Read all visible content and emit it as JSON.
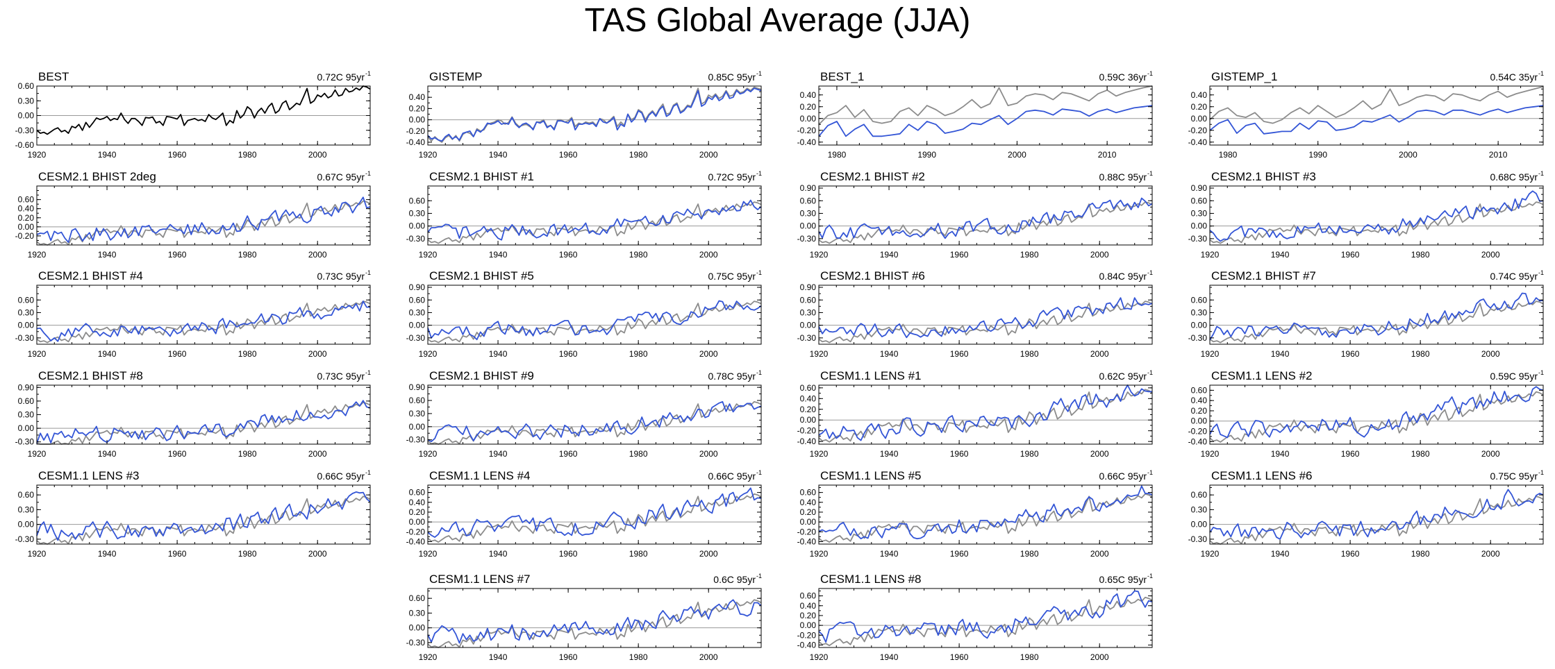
{
  "title": "TAS Global Average (JJA)",
  "colors": {
    "obs": "#000000",
    "model": "#3355d6",
    "ref": "#8c8c8c",
    "zero": "#999999"
  },
  "chart_data": [
    {
      "type": "line",
      "title": "BEST",
      "trend": "0.72C 95yr",
      "xlim": [
        1920,
        2015
      ],
      "ylim": [
        -0.6,
        0.6
      ],
      "yticks": [
        -0.6,
        -0.3,
        0,
        0.3,
        0.6
      ],
      "xticks": [
        1920,
        1940,
        1960,
        1980,
        2000
      ],
      "series": [
        {
          "values": [
            -0.3,
            -0.36,
            -0.34,
            -0.38,
            -0.33,
            -0.28,
            -0.25,
            -0.33,
            -0.3,
            -0.36,
            -0.22,
            -0.25,
            -0.18,
            -0.3,
            -0.14,
            -0.24,
            -0.15,
            -0.05,
            -0.08,
            -0.06,
            -0.02,
            -0.1,
            -0.06,
            -0.08,
            0.05,
            -0.08,
            -0.16,
            -0.06,
            -0.06,
            -0.12,
            -0.2,
            -0.04,
            -0.05,
            -0.03,
            -0.15,
            -0.12,
            -0.2,
            -0.02,
            -0.03,
            -0.05,
            -0.07,
            0.02,
            -0.2,
            -0.1,
            -0.08,
            -0.06,
            -0.1,
            -0.08,
            -0.12,
            0.02,
            -0.05,
            -0.08,
            -0.02,
            0.05,
            -0.2,
            -0.1,
            -0.15,
            0.1,
            -0.05,
            0.02,
            0.18,
            0.12,
            -0.05,
            0.08,
            0.15,
            0.05,
            0.18,
            0.25,
            0.05,
            0.1,
            0.25,
            0.3,
            0.12,
            0.18,
            0.25,
            0.22,
            0.38,
            0.55,
            0.25,
            0.3,
            0.42,
            0.38,
            0.45,
            0.36,
            0.4,
            0.52,
            0.4,
            0.42,
            0.55,
            0.48,
            0.5,
            0.56,
            0.52,
            0.6,
            0.58,
            0.54
          ]
        }
      ]
    },
    {
      "type": "line",
      "title": "GISTEMP",
      "trend": "0.85C 95yr",
      "xlim": [
        1920,
        2015
      ],
      "ylim": [
        -0.45,
        0.6
      ],
      "yticks": [
        -0.4,
        -0.2,
        0,
        0.2,
        0.4
      ],
      "xticks": [
        1920,
        1940,
        1960,
        1980,
        2000
      ],
      "series": [
        {
          "values": [
            -0.3,
            -0.38,
            -0.3,
            -0.36,
            -0.4,
            -0.32,
            -0.28,
            -0.35,
            -0.28,
            -0.38,
            -0.26,
            -0.22,
            -0.24,
            -0.3,
            -0.16,
            -0.2,
            -0.18,
            -0.08,
            -0.06,
            -0.04,
            0.0,
            -0.02,
            -0.08,
            -0.05,
            0.05,
            -0.06,
            -0.12,
            -0.1,
            -0.08,
            -0.12,
            -0.16,
            -0.04,
            -0.04,
            0.0,
            -0.12,
            -0.1,
            -0.16,
            0.0,
            0.0,
            -0.04,
            -0.02,
            0.04,
            -0.12,
            -0.06,
            -0.08,
            -0.04,
            -0.06,
            -0.04,
            -0.1,
            0.02,
            0.0,
            -0.06,
            0.0,
            0.06,
            -0.12,
            -0.04,
            -0.1,
            0.1,
            0.0,
            0.04,
            0.18,
            0.14,
            0.0,
            0.1,
            0.16,
            0.08,
            0.2,
            0.28,
            0.1,
            0.12,
            0.26,
            0.3,
            0.14,
            0.18,
            0.26,
            0.24,
            0.4,
            0.56,
            0.28,
            0.32,
            0.44,
            0.4,
            0.46,
            0.38,
            0.42,
            0.52,
            0.42,
            0.44,
            0.54,
            0.48,
            0.5,
            0.56,
            0.52,
            0.58,
            0.56,
            0.54
          ]
        },
        {
          "values": [
            -0.28,
            -0.34,
            -0.32,
            -0.36,
            -0.38,
            -0.3,
            -0.26,
            -0.34,
            -0.3,
            -0.36,
            -0.24,
            -0.22,
            -0.2,
            -0.3,
            -0.18,
            -0.22,
            -0.16,
            -0.06,
            -0.08,
            -0.06,
            -0.02,
            -0.08,
            -0.06,
            -0.08,
            0.04,
            -0.08,
            -0.14,
            -0.08,
            -0.06,
            -0.1,
            -0.18,
            -0.04,
            -0.06,
            -0.02,
            -0.14,
            -0.1,
            -0.18,
            -0.02,
            -0.02,
            -0.04,
            -0.06,
            0.02,
            -0.18,
            -0.08,
            -0.08,
            -0.06,
            -0.08,
            -0.06,
            -0.12,
            0.02,
            -0.04,
            -0.06,
            -0.02,
            0.04,
            -0.18,
            -0.08,
            -0.12,
            0.1,
            -0.04,
            0.02,
            0.16,
            0.12,
            -0.04,
            0.08,
            0.14,
            0.06,
            0.18,
            0.24,
            0.06,
            0.1,
            0.24,
            0.28,
            0.12,
            0.16,
            0.24,
            0.22,
            0.36,
            0.52,
            0.24,
            0.28,
            0.4,
            0.36,
            0.44,
            0.34,
            0.38,
            0.5,
            0.38,
            0.4,
            0.52,
            0.46,
            0.48,
            0.54,
            0.5,
            0.56,
            0.54,
            0.52
          ]
        }
      ]
    },
    {
      "type": "line",
      "title": "BEST_1",
      "trend": "0.59C 36yr",
      "xlim": [
        1978,
        2015
      ],
      "ylim": [
        -0.45,
        0.55
      ],
      "yticks": [
        -0.4,
        -0.2,
        0,
        0.2,
        0.4
      ],
      "xticks": [
        1980,
        1990,
        2000,
        2010
      ],
      "series": [
        {
          "values": [
            -0.1,
            0.05,
            0.1,
            0.22,
            0.02,
            0.15,
            -0.05,
            -0.08,
            -0.05,
            0.12,
            0.18,
            0.05,
            0.22,
            0.15,
            0.05,
            0.1,
            0.2,
            0.32,
            0.18,
            0.25,
            0.52,
            0.22,
            0.26,
            0.38,
            0.42,
            0.4,
            0.32,
            0.44,
            0.42,
            0.36,
            0.3,
            0.42,
            0.48,
            0.38,
            0.44,
            0.48,
            0.52,
            0.56
          ]
        },
        {
          "values": [
            -0.3,
            -0.12,
            -0.05,
            -0.3,
            -0.18,
            -0.1,
            -0.3,
            -0.3,
            -0.28,
            -0.26,
            -0.1,
            -0.2,
            -0.05,
            -0.1,
            -0.25,
            -0.22,
            -0.18,
            -0.08,
            -0.1,
            -0.02,
            0.05,
            -0.1,
            0.0,
            0.12,
            0.14,
            0.12,
            0.06,
            0.16,
            0.14,
            0.12,
            0.04,
            0.12,
            0.16,
            0.1,
            0.14,
            0.18,
            0.2,
            0.22
          ]
        }
      ]
    },
    {
      "type": "line",
      "title": "GISTEMP_1",
      "trend": "0.54C 35yr",
      "xlim": [
        1978,
        2015
      ],
      "ylim": [
        -0.45,
        0.55
      ],
      "yticks": [
        -0.4,
        -0.2,
        0,
        0.2,
        0.4
      ],
      "xticks": [
        1980,
        1990,
        2000,
        2010
      ],
      "series": [
        {
          "values": [
            -0.02,
            0.12,
            0.18,
            0.05,
            0.02,
            0.1,
            -0.05,
            -0.08,
            -0.02,
            0.1,
            0.18,
            0.08,
            0.22,
            0.12,
            0.02,
            0.08,
            0.18,
            0.3,
            0.16,
            0.24,
            0.5,
            0.22,
            0.28,
            0.36,
            0.4,
            0.38,
            0.3,
            0.42,
            0.4,
            0.34,
            0.3,
            0.4,
            0.46,
            0.36,
            0.42,
            0.46,
            0.5,
            0.54
          ]
        },
        {
          "values": [
            -0.2,
            -0.08,
            -0.02,
            -0.25,
            -0.12,
            -0.08,
            -0.26,
            -0.24,
            -0.22,
            -0.22,
            -0.08,
            -0.18,
            -0.04,
            -0.06,
            -0.2,
            -0.18,
            -0.14,
            -0.04,
            -0.06,
            0.0,
            0.06,
            -0.06,
            0.02,
            0.12,
            0.14,
            0.12,
            0.06,
            0.14,
            0.14,
            0.1,
            0.06,
            0.12,
            0.16,
            0.1,
            0.14,
            0.18,
            0.2,
            0.22
          ]
        }
      ]
    },
    {
      "type": "line",
      "title": "CESM2.1 BHIST 2deg",
      "trend": "0.67C 95yr",
      "xlim": [
        1920,
        2015
      ],
      "ylim": [
        -0.4,
        0.9
      ],
      "yticks": [
        -0.2,
        0,
        0.2,
        0.4,
        0.6
      ],
      "xticks": [
        1920,
        1940,
        1960,
        1980,
        2000
      ]
    },
    {
      "type": "line",
      "title": "CESM2.1 BHIST #1",
      "trend": "0.72C 95yr",
      "xlim": [
        1920,
        2015
      ],
      "ylim": [
        -0.45,
        0.95
      ],
      "yticks": [
        -0.3,
        0,
        0.3,
        0.6
      ],
      "xticks": [
        1920,
        1940,
        1960,
        1980,
        2000
      ]
    },
    {
      "type": "line",
      "title": "CESM2.1 BHIST #2",
      "trend": "0.88C 95yr",
      "xlim": [
        1920,
        2015
      ],
      "ylim": [
        -0.45,
        0.95
      ],
      "yticks": [
        -0.3,
        0,
        0.3,
        0.6,
        0.9
      ],
      "xticks": [
        1920,
        1940,
        1960,
        1980,
        2000
      ]
    },
    {
      "type": "line",
      "title": "CESM2.1 BHIST #3",
      "trend": "0.68C 95yr",
      "xlim": [
        1920,
        2015
      ],
      "ylim": [
        -0.45,
        0.95
      ],
      "yticks": [
        -0.3,
        0,
        0.3,
        0.6,
        0.9
      ],
      "xticks": [
        1920,
        1940,
        1960,
        1980,
        2000
      ]
    },
    {
      "type": "line",
      "title": "CESM2.1 BHIST #4",
      "trend": "0.73C 95yr",
      "xlim": [
        1920,
        2015
      ],
      "ylim": [
        -0.45,
        0.95
      ],
      "yticks": [
        -0.3,
        0,
        0.3,
        0.6
      ],
      "xticks": [
        1920,
        1940,
        1960,
        1980,
        2000
      ]
    },
    {
      "type": "line",
      "title": "CESM2.1 BHIST #5",
      "trend": "0.75C 95yr",
      "xlim": [
        1920,
        2015
      ],
      "ylim": [
        -0.45,
        0.95
      ],
      "yticks": [
        -0.3,
        0,
        0.3,
        0.6,
        0.9
      ],
      "xticks": [
        1920,
        1940,
        1960,
        1980,
        2000
      ]
    },
    {
      "type": "line",
      "title": "CESM2.1 BHIST #6",
      "trend": "0.84C 95yr",
      "xlim": [
        1920,
        2015
      ],
      "ylim": [
        -0.45,
        0.95
      ],
      "yticks": [
        -0.3,
        0,
        0.3,
        0.6,
        0.9
      ],
      "xticks": [
        1920,
        1940,
        1960,
        1980,
        2000
      ]
    },
    {
      "type": "line",
      "title": "CESM2.1 BHIST #7",
      "trend": "0.74C 95yr",
      "xlim": [
        1920,
        2015
      ],
      "ylim": [
        -0.45,
        0.95
      ],
      "yticks": [
        -0.3,
        0,
        0.3,
        0.6
      ],
      "xticks": [
        1920,
        1940,
        1960,
        1980,
        2000
      ]
    },
    {
      "type": "line",
      "title": "CESM2.1 BHIST #8",
      "trend": "0.73C 95yr",
      "xlim": [
        1920,
        2015
      ],
      "ylim": [
        -0.35,
        0.95
      ],
      "yticks": [
        -0.3,
        0,
        0.3,
        0.6,
        0.9
      ],
      "xticks": [
        1920,
        1940,
        1960,
        1980,
        2000
      ]
    },
    {
      "type": "line",
      "title": "CESM2.1 BHIST #9",
      "trend": "0.78C 95yr",
      "xlim": [
        1920,
        2015
      ],
      "ylim": [
        -0.4,
        0.95
      ],
      "yticks": [
        -0.3,
        0,
        0.3,
        0.6,
        0.9
      ],
      "xticks": [
        1920,
        1940,
        1960,
        1980,
        2000
      ]
    },
    {
      "type": "line",
      "title": "CESM1.1 LENS #1",
      "trend": "0.62C 95yr",
      "xlim": [
        1920,
        2015
      ],
      "ylim": [
        -0.45,
        0.65
      ],
      "yticks": [
        -0.4,
        -0.2,
        0,
        0.2,
        0.4,
        0.6
      ],
      "xticks": [
        1920,
        1940,
        1960,
        1980,
        2000
      ]
    },
    {
      "type": "line",
      "title": "CESM1.1 LENS #2",
      "trend": "0.59C 95yr",
      "xlim": [
        1920,
        2015
      ],
      "ylim": [
        -0.45,
        0.7
      ],
      "yticks": [
        -0.4,
        -0.2,
        0,
        0.2,
        0.4,
        0.6
      ],
      "xticks": [
        1920,
        1940,
        1960,
        1980,
        2000
      ]
    },
    {
      "type": "line",
      "title": "CESM1.1 LENS #3",
      "trend": "0.66C 95yr",
      "xlim": [
        1920,
        2015
      ],
      "ylim": [
        -0.4,
        0.8
      ],
      "yticks": [
        -0.3,
        0,
        0.3,
        0.6
      ],
      "xticks": [
        1920,
        1940,
        1960,
        1980,
        2000
      ]
    },
    {
      "type": "line",
      "title": "CESM1.1 LENS #4",
      "trend": "0.66C 95yr",
      "xlim": [
        1920,
        2015
      ],
      "ylim": [
        -0.45,
        0.75
      ],
      "yticks": [
        -0.4,
        -0.2,
        0,
        0.2,
        0.4,
        0.6
      ],
      "xticks": [
        1920,
        1940,
        1960,
        1980,
        2000
      ]
    },
    {
      "type": "line",
      "title": "CESM1.1 LENS #5",
      "trend": "0.66C 95yr",
      "xlim": [
        1920,
        2015
      ],
      "ylim": [
        -0.45,
        0.75
      ],
      "yticks": [
        -0.4,
        -0.2,
        0,
        0.2,
        0.4,
        0.6
      ],
      "xticks": [
        1920,
        1940,
        1960,
        1980,
        2000
      ]
    },
    {
      "type": "line",
      "title": "CESM1.1 LENS #6",
      "trend": "0.75C 95yr",
      "xlim": [
        1920,
        2015
      ],
      "ylim": [
        -0.4,
        0.8
      ],
      "yticks": [
        -0.3,
        0,
        0.3,
        0.6
      ],
      "xticks": [
        1920,
        1940,
        1960,
        1980,
        2000
      ]
    },
    {
      "type": "line",
      "title": "CESM1.1 LENS #7",
      "trend": "0.6C 95yr",
      "xlim": [
        1920,
        2015
      ],
      "ylim": [
        -0.4,
        0.8
      ],
      "yticks": [
        -0.3,
        0,
        0.3,
        0.6
      ],
      "xticks": [
        1920,
        1940,
        1960,
        1980,
        2000
      ]
    },
    {
      "type": "line",
      "title": "CESM1.1 LENS #8",
      "trend": "0.65C 95yr",
      "xlim": [
        1920,
        2015
      ],
      "ylim": [
        -0.45,
        0.75
      ],
      "yticks": [
        -0.4,
        -0.2,
        0,
        0.2,
        0.4,
        0.6
      ],
      "xticks": [
        1920,
        1940,
        1960,
        1980,
        2000
      ]
    }
  ]
}
